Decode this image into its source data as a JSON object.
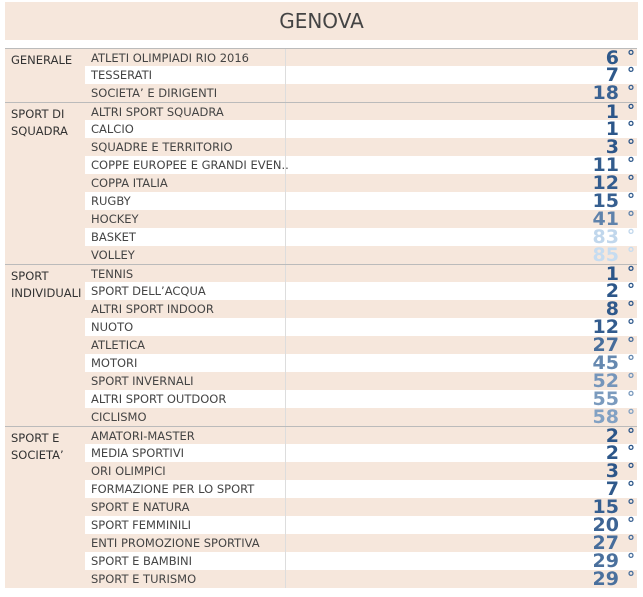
{
  "title": "GENOVA",
  "rank_mark": "°",
  "groups": [
    {
      "label": "GENERALE",
      "rows": [
        {
          "name": "ATLETI OLIMPIADI RIO 2016",
          "rank": 6
        },
        {
          "name": "TESSERATI",
          "rank": 7
        },
        {
          "name": "SOCIETA’ E DIRIGENTI",
          "rank": 18
        }
      ]
    },
    {
      "label": "SPORT DI SQUADRA",
      "rows": [
        {
          "name": "ALTRI SPORT SQUADRA",
          "rank": 1
        },
        {
          "name": "CALCIO",
          "rank": 1
        },
        {
          "name": "SQUADRE E TERRITORIO",
          "rank": 3
        },
        {
          "name": "COPPE EUROPEE E GRANDI EVEN..",
          "rank": 11
        },
        {
          "name": "COPPA ITALIA",
          "rank": 12
        },
        {
          "name": "RUGBY",
          "rank": 15
        },
        {
          "name": "HOCKEY",
          "rank": 41
        },
        {
          "name": "BASKET",
          "rank": 83
        },
        {
          "name": "VOLLEY",
          "rank": 85
        }
      ]
    },
    {
      "label": "SPORT INDIVIDUALI",
      "rows": [
        {
          "name": "TENNIS",
          "rank": 1
        },
        {
          "name": "SPORT DELL’ACQUA",
          "rank": 2
        },
        {
          "name": "ALTRI SPORT INDOOR",
          "rank": 8
        },
        {
          "name": "NUOTO",
          "rank": 12
        },
        {
          "name": "ATLETICA",
          "rank": 27
        },
        {
          "name": "MOTORI",
          "rank": 45
        },
        {
          "name": "SPORT INVERNALI",
          "rank": 52
        },
        {
          "name": "ALTRI SPORT OUTDOOR",
          "rank": 55
        },
        {
          "name": "CICLISMO",
          "rank": 58
        }
      ]
    },
    {
      "label": "SPORT E SOCIETA’",
      "rows": [
        {
          "name": "AMATORI-MASTER",
          "rank": 2
        },
        {
          "name": "MEDIA SPORTIVI",
          "rank": 2
        },
        {
          "name": "ORI OLIMPICI",
          "rank": 3
        },
        {
          "name": "FORMAZIONE PER LO SPORT",
          "rank": 7
        },
        {
          "name": "SPORT E NATURA",
          "rank": 15
        },
        {
          "name": "SPORT FEMMINILI",
          "rank": 20
        },
        {
          "name": "ENTI PROMOZIONE SPORTIVA",
          "rank": 27
        },
        {
          "name": "SPORT E BAMBINI",
          "rank": 29
        },
        {
          "name": "SPORT E TURISMO",
          "rank": 29
        }
      ]
    }
  ]
}
